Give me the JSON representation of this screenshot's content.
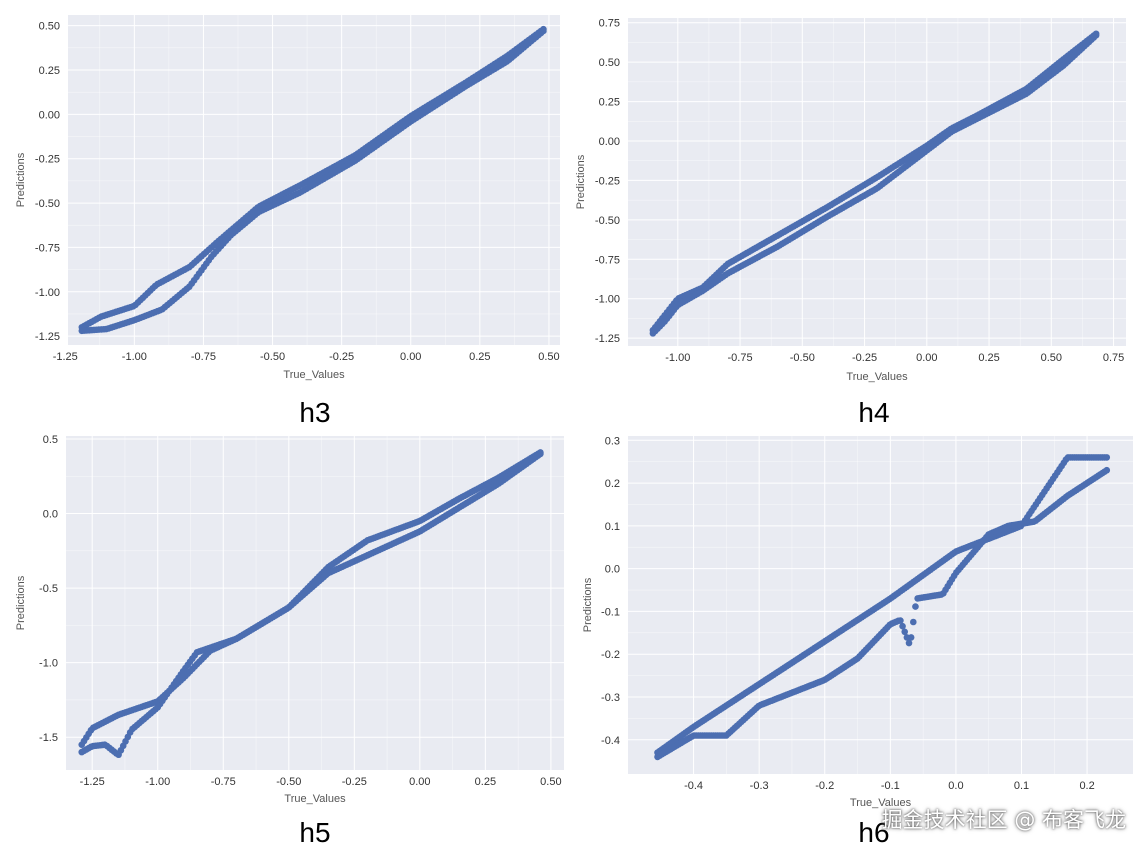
{
  "colors": {
    "plot_background": "#e9ebf2",
    "grid": "#ffffff",
    "marker": "#4c6eb1",
    "caption": "#000000"
  },
  "watermark": "掘金技术社区 @ 布客飞龙",
  "chart_data": [
    {
      "type": "scatter",
      "caption": "h3",
      "xlabel": "True_Values",
      "ylabel": "Predictions",
      "xlim": [
        -1.24,
        0.54
      ],
      "ylim": [
        -1.3,
        0.56
      ],
      "xticks": [
        -1.25,
        -1.0,
        -0.75,
        -0.5,
        -0.25,
        0.0,
        0.25,
        0.5
      ],
      "xtick_labels": [
        "-1.25",
        "-1.00",
        "-0.75",
        "-0.50",
        "-0.25",
        "0.00",
        "0.25",
        "0.50"
      ],
      "yticks": [
        -1.25,
        -1.0,
        -0.75,
        -0.5,
        -0.25,
        0.0,
        0.25,
        0.5
      ],
      "ytick_labels": [
        "-1.25",
        "-1.00",
        "-0.75",
        "-0.50",
        "-0.25",
        "0.00",
        "0.25",
        "0.50"
      ],
      "grid": true,
      "curve": {
        "n_points": 190,
        "x_start": -1.19,
        "x_end": 0.48,
        "upper_branch": [
          [
            -1.19,
            -1.2
          ],
          [
            -1.12,
            -1.14
          ],
          [
            -1.0,
            -1.08
          ],
          [
            -0.92,
            -0.96
          ],
          [
            -0.8,
            -0.86
          ],
          [
            -0.7,
            -0.72
          ],
          [
            -0.55,
            -0.52
          ],
          [
            -0.4,
            -0.4
          ],
          [
            -0.2,
            -0.23
          ],
          [
            0.0,
            -0.01
          ],
          [
            0.2,
            0.18
          ],
          [
            0.35,
            0.33
          ],
          [
            0.48,
            0.48
          ]
        ],
        "lower_branch": [
          [
            -1.19,
            -1.22
          ],
          [
            -1.1,
            -1.21
          ],
          [
            -1.0,
            -1.16
          ],
          [
            -0.9,
            -1.1
          ],
          [
            -0.8,
            -0.97
          ],
          [
            -0.72,
            -0.8
          ],
          [
            -0.65,
            -0.68
          ],
          [
            -0.55,
            -0.55
          ],
          [
            -0.4,
            -0.44
          ],
          [
            -0.2,
            -0.26
          ],
          [
            0.0,
            -0.04
          ],
          [
            0.2,
            0.16
          ],
          [
            0.35,
            0.3
          ],
          [
            0.48,
            0.47
          ]
        ]
      }
    },
    {
      "type": "scatter",
      "caption": "h4",
      "xlabel": "True_Values",
      "ylabel": "Predictions",
      "xlim": [
        -1.2,
        0.8
      ],
      "ylim": [
        -1.3,
        0.78
      ],
      "xticks": [
        -1.0,
        -0.75,
        -0.5,
        -0.25,
        0.0,
        0.25,
        0.5,
        0.75
      ],
      "xtick_labels": [
        "-1.00",
        "-0.75",
        "-0.50",
        "-0.25",
        "0.00",
        "0.25",
        "0.50",
        "0.75"
      ],
      "yticks": [
        -1.25,
        -1.0,
        -0.75,
        -0.5,
        -0.25,
        0.0,
        0.25,
        0.5,
        0.75
      ],
      "ytick_labels": [
        "-1.25",
        "-1.00",
        "-0.75",
        "-0.50",
        "-0.25",
        "0.00",
        "0.25",
        "0.50",
        "0.75"
      ],
      "grid": true,
      "curve": {
        "n_points": 190,
        "x_start": -1.1,
        "x_end": 0.68,
        "upper_branch": [
          [
            -1.1,
            -1.2
          ],
          [
            -1.05,
            -1.1
          ],
          [
            -1.0,
            -1.0
          ],
          [
            -0.9,
            -0.93
          ],
          [
            -0.8,
            -0.78
          ],
          [
            -0.6,
            -0.6
          ],
          [
            -0.4,
            -0.42
          ],
          [
            -0.2,
            -0.23
          ],
          [
            0.0,
            -0.03
          ],
          [
            0.1,
            0.08
          ],
          [
            0.2,
            0.16
          ],
          [
            0.4,
            0.33
          ],
          [
            0.55,
            0.52
          ],
          [
            0.68,
            0.68
          ]
        ],
        "lower_branch": [
          [
            -1.1,
            -1.22
          ],
          [
            -1.05,
            -1.14
          ],
          [
            -1.0,
            -1.04
          ],
          [
            -0.9,
            -0.95
          ],
          [
            -0.8,
            -0.84
          ],
          [
            -0.6,
            -0.67
          ],
          [
            -0.4,
            -0.48
          ],
          [
            -0.2,
            -0.3
          ],
          [
            0.0,
            -0.06
          ],
          [
            0.1,
            0.06
          ],
          [
            0.2,
            0.14
          ],
          [
            0.4,
            0.3
          ],
          [
            0.55,
            0.48
          ],
          [
            0.68,
            0.67
          ]
        ]
      }
    },
    {
      "type": "scatter",
      "caption": "h5",
      "xlabel": "True_Values",
      "ylabel": "Predictions",
      "xlim": [
        -1.35,
        0.55
      ],
      "ylim": [
        -1.72,
        0.52
      ],
      "xticks": [
        -1.25,
        -1.0,
        -0.75,
        -0.5,
        -0.25,
        0.0,
        0.25,
        0.5
      ],
      "xtick_labels": [
        "-1.25",
        "-1.00",
        "-0.75",
        "-0.50",
        "-0.25",
        "0.00",
        "0.25",
        "0.50"
      ],
      "yticks": [
        -1.5,
        -1.0,
        -0.5,
        0.0,
        0.5
      ],
      "ytick_labels": [
        "-1.5",
        "-1.0",
        "-0.5",
        "0.0",
        "0.5"
      ],
      "grid": true,
      "curve": {
        "n_points": 200,
        "x_start": -1.29,
        "x_end": 0.46,
        "upper_branch": [
          [
            -1.29,
            -1.55
          ],
          [
            -1.25,
            -1.44
          ],
          [
            -1.15,
            -1.35
          ],
          [
            -1.0,
            -1.26
          ],
          [
            -0.9,
            -1.1
          ],
          [
            -0.8,
            -0.92
          ],
          [
            -0.7,
            -0.84
          ],
          [
            -0.5,
            -0.63
          ],
          [
            -0.35,
            -0.36
          ],
          [
            -0.2,
            -0.18
          ],
          [
            0.0,
            -0.05
          ],
          [
            0.15,
            0.1
          ],
          [
            0.3,
            0.24
          ],
          [
            0.46,
            0.41
          ]
        ],
        "lower_branch": [
          [
            -1.29,
            -1.6
          ],
          [
            -1.25,
            -1.56
          ],
          [
            -1.2,
            -1.55
          ],
          [
            -1.15,
            -1.62
          ],
          [
            -1.1,
            -1.45
          ],
          [
            -1.0,
            -1.3
          ],
          [
            -0.9,
            -1.05
          ],
          [
            -0.85,
            -0.93
          ],
          [
            -0.7,
            -0.84
          ],
          [
            -0.5,
            -0.63
          ],
          [
            -0.35,
            -0.4
          ],
          [
            -0.2,
            -0.28
          ],
          [
            0.0,
            -0.12
          ],
          [
            0.15,
            0.04
          ],
          [
            0.3,
            0.2
          ],
          [
            0.46,
            0.4
          ]
        ]
      }
    },
    {
      "type": "scatter",
      "caption": "h6",
      "xlabel": "True_Values",
      "ylabel": "Predictions",
      "xlim": [
        -0.5,
        0.27
      ],
      "ylim": [
        -0.48,
        0.31
      ],
      "xticks": [
        -0.4,
        -0.3,
        -0.2,
        -0.1,
        0.0,
        0.1,
        0.2
      ],
      "xtick_labels": [
        "-0.4",
        "-0.3",
        "-0.2",
        "-0.1",
        "0.0",
        "0.1",
        "0.2"
      ],
      "yticks": [
        -0.4,
        -0.3,
        -0.2,
        -0.1,
        0.0,
        0.1,
        0.2,
        0.3
      ],
      "ytick_labels": [
        "-0.4",
        "-0.3",
        "-0.2",
        "-0.1",
        "0.0",
        "0.1",
        "0.2",
        "0.3"
      ],
      "grid": true,
      "curve": {
        "n_points": 210,
        "x_start": -0.455,
        "x_end": 0.23,
        "upper_branch": [
          [
            -0.455,
            -0.43
          ],
          [
            -0.4,
            -0.37
          ],
          [
            -0.3,
            -0.27
          ],
          [
            -0.2,
            -0.17
          ],
          [
            -0.1,
            -0.07
          ],
          [
            0.0,
            0.04
          ],
          [
            0.1,
            0.1
          ],
          [
            0.17,
            0.26
          ]
        ],
        "lower_branch": [
          [
            -0.455,
            -0.44
          ],
          [
            -0.4,
            -0.39
          ],
          [
            -0.35,
            -0.39
          ],
          [
            -0.3,
            -0.32
          ],
          [
            -0.2,
            -0.26
          ],
          [
            -0.15,
            -0.21
          ],
          [
            -0.1,
            -0.13
          ],
          [
            -0.085,
            -0.12
          ],
          [
            -0.07,
            -0.18
          ],
          [
            -0.06,
            -0.07
          ],
          [
            -0.02,
            -0.06
          ],
          [
            0.0,
            -0.01
          ],
          [
            0.05,
            0.08
          ],
          [
            0.08,
            0.1
          ],
          [
            0.12,
            0.11
          ],
          [
            0.17,
            0.17
          ],
          [
            0.23,
            0.23
          ]
        ]
      }
    }
  ]
}
